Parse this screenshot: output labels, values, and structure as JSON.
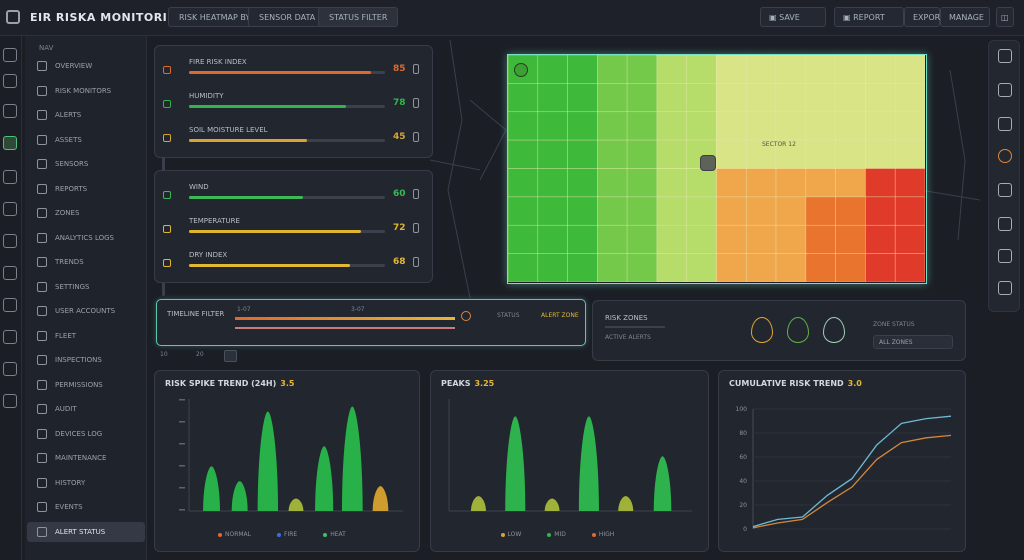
{
  "app": {
    "title": "EIR RISKA MONITORING"
  },
  "header": {
    "tabs": [
      "RISK HEATMAP BY",
      "SENSOR DATA",
      "STATUS FILTER"
    ],
    "right": {
      "search_label": "SAVE",
      "buttons": [
        "REPORT",
        "EXPORT",
        "MANAGE"
      ]
    }
  },
  "sidebar": {
    "header": "NAV",
    "items": [
      "OVERVIEW",
      "RISK MONITORS",
      "ALERTS",
      "ASSETS",
      "SENSORS",
      "REPORTS",
      "ZONES",
      "ANALYTICS LOGS",
      "TRENDS",
      "SETTINGS",
      "USER ACCOUNTS",
      "FLEET",
      "INSPECTIONS",
      "PERMISSIONS",
      "AUDIT",
      "DEVICES LOG",
      "MAINTENANCE",
      "HISTORY",
      "EVENTS",
      "ALERT STATUS"
    ]
  },
  "risk_panel_1": {
    "rows": [
      {
        "label": "FIRE RISK INDEX",
        "value": 0.93,
        "color": "#e0692b",
        "pct": "85"
      },
      {
        "label": "HUMIDITY",
        "value": 0.8,
        "color": "#31b54a",
        "pct": "78"
      },
      {
        "label": "SOIL MOISTURE LEVEL",
        "value": 0.6,
        "color": "#d9a530",
        "pct": "45"
      }
    ]
  },
  "risk_panel_2": {
    "rows": [
      {
        "label": "WIND",
        "value": 0.58,
        "color": "#3cb957",
        "pct": "60"
      },
      {
        "label": "TEMPERATURE",
        "value": 0.88,
        "color": "#e0b52e",
        "pct": "72"
      },
      {
        "label": "DRY INDEX",
        "value": 0.82,
        "color": "#e5b834",
        "pct": "68"
      }
    ]
  },
  "map": {
    "area_label": "SECTOR 12"
  },
  "timeline": {
    "label": "TIMELINE FILTER",
    "ticks": [
      "1-07",
      "3-07"
    ],
    "status_label": "STATUS",
    "alert_label": "ALERT ZONE",
    "controls": [
      "10",
      "20"
    ]
  },
  "risk_summary": {
    "label": "RISK ZONES",
    "sub": "ACTIVE ALERTS",
    "indicators": [
      {
        "color": "#e0a52e"
      },
      {
        "color": "#63b04a"
      },
      {
        "color": "#9fd0b4"
      }
    ],
    "right_label": "ZONE STATUS",
    "select": "ALL ZONES"
  },
  "chart_data": [
    {
      "type": "area",
      "title": "RISK SPIKE TREND (24H)",
      "highlight": "3.5",
      "x": [
        1,
        2,
        3,
        4,
        5,
        6,
        7
      ],
      "series": [
        {
          "values": [
            18,
            12,
            40,
            5,
            26,
            42,
            10
          ],
          "color": "#29b74b"
        }
      ],
      "legend": [
        "NORMAL",
        "FIRE",
        "HEAT"
      ],
      "legend_colors": [
        "#e06a2b",
        "#3b6fe0",
        "#3cc06a"
      ]
    },
    {
      "type": "area",
      "title": "PEAKS",
      "highlight": "3.25",
      "x": [
        1,
        2,
        3,
        4,
        5,
        6
      ],
      "series": [
        {
          "values": [
            6,
            38,
            5,
            38,
            6,
            22
          ],
          "color": "#2fb94f"
        }
      ],
      "legend": [
        "LOW",
        "MID",
        "HIGH"
      ],
      "legend_colors": [
        "#d9a530",
        "#31b54a",
        "#e06a2b"
      ]
    },
    {
      "type": "line",
      "title": "CUMULATIVE RISK TREND",
      "highlight": "3.0",
      "x": [
        0,
        1,
        2,
        3,
        4,
        5,
        6,
        7,
        8
      ],
      "series": [
        {
          "name": "",
          "values": [
            2,
            8,
            10,
            28,
            42,
            70,
            88,
            92,
            94
          ],
          "color": "#6fb9d6"
        },
        {
          "name": "",
          "values": [
            1,
            5,
            8,
            22,
            35,
            58,
            72,
            76,
            78
          ],
          "color": "#d4873a"
        }
      ],
      "yticks": [
        "100",
        "80",
        "60",
        "40",
        "20",
        "0"
      ],
      "ylim": [
        0,
        100
      ]
    }
  ]
}
